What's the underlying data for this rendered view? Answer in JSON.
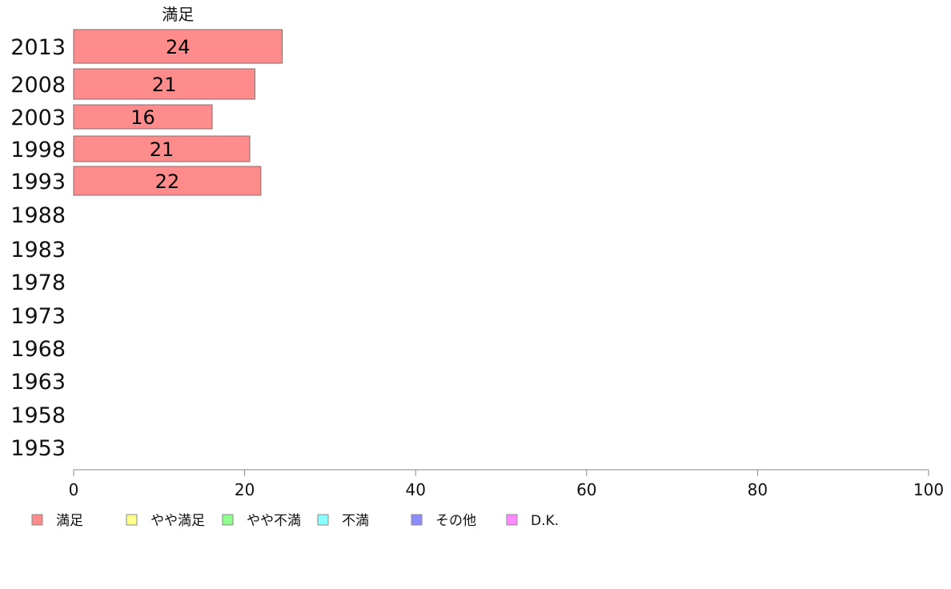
{
  "chart_data": {
    "type": "bar",
    "orientation": "horizontal",
    "stacked": true,
    "title": "",
    "xlabel": "",
    "ylabel": "",
    "xlim": [
      0,
      100
    ],
    "x_ticks": [
      0,
      20,
      40,
      60,
      80,
      100
    ],
    "categories": [
      "2013",
      "2008",
      "2003",
      "1998",
      "1993",
      "1988",
      "1983",
      "1978",
      "1973",
      "1968",
      "1963",
      "1958",
      "1953"
    ],
    "series": [
      {
        "name": "満足",
        "color": "#ff8c8c",
        "values": [
          24.4,
          21.2,
          16.2,
          20.6,
          21.9,
          null,
          null,
          null,
          null,
          null,
          null,
          null,
          null
        ],
        "labels": [
          "24",
          "21",
          "16",
          "21",
          "22",
          null,
          null,
          null,
          null,
          null,
          null,
          null,
          null
        ]
      },
      {
        "name": "やや満足",
        "color": "#ffff8c",
        "values": [
          null,
          null,
          null,
          null,
          null,
          null,
          null,
          null,
          null,
          null,
          null,
          null,
          null
        ]
      },
      {
        "name": "やや不満",
        "color": "#8cff8c",
        "values": [
          null,
          null,
          null,
          null,
          null,
          null,
          null,
          null,
          null,
          null,
          null,
          null,
          null
        ]
      },
      {
        "name": "不満",
        "color": "#8cffff",
        "values": [
          null,
          null,
          null,
          null,
          null,
          null,
          null,
          null,
          null,
          null,
          null,
          null,
          null
        ]
      },
      {
        "name": "その他",
        "color": "#8c8cff",
        "values": [
          null,
          null,
          null,
          null,
          null,
          null,
          null,
          null,
          null,
          null,
          null,
          null,
          null
        ]
      },
      {
        "name": "D.K.",
        "color": "#ff8cff",
        "values": [
          null,
          null,
          null,
          null,
          null,
          null,
          null,
          null,
          null,
          null,
          null,
          null,
          null
        ]
      }
    ],
    "series_header": "満足",
    "grid": false,
    "legend_position": "bottom-left"
  }
}
